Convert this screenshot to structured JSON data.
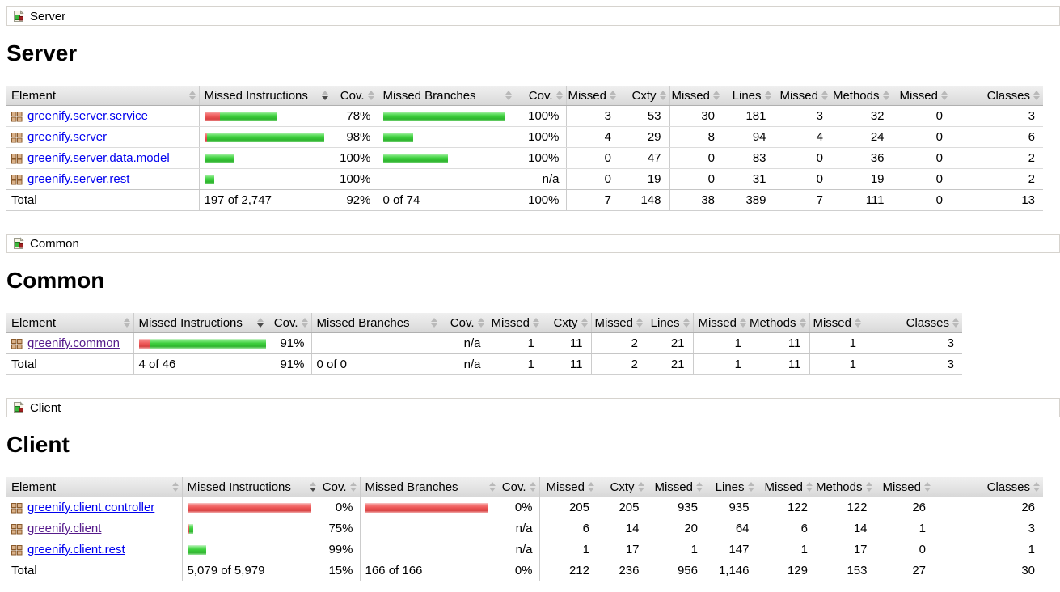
{
  "colors": {
    "link": "#0000EE",
    "link_visited": "#551A8B",
    "bar_green": "#3ecf3e",
    "bar_red": "#ef5a5a"
  },
  "sections": [
    {
      "breadcrumb": "Server",
      "title": "Server",
      "columns": [
        "Element",
        "Missed Instructions",
        "Cov.",
        "Missed Branches",
        "Cov.",
        "Missed",
        "Cxty",
        "Missed",
        "Lines",
        "Missed",
        "Methods",
        "Missed",
        "Classes"
      ],
      "rows": [
        {
          "name": "greenify.server.service",
          "instr_bar": {
            "red": 19,
            "green": 70
          },
          "instr_cov": "78%",
          "branch_bar": {
            "red": 0,
            "green": 151
          },
          "branch_cov": "100%",
          "missed_cxty": "3",
          "cxty": "53",
          "missed_lines": "30",
          "lines": "181",
          "missed_methods": "3",
          "methods": "32",
          "missed_classes": "0",
          "classes": "3"
        },
        {
          "name": "greenify.server",
          "instr_bar": {
            "red": 3,
            "green": 145
          },
          "instr_cov": "98%",
          "branch_bar": {
            "red": 0,
            "green": 37
          },
          "branch_cov": "100%",
          "missed_cxty": "4",
          "cxty": "29",
          "missed_lines": "8",
          "lines": "94",
          "missed_methods": "4",
          "methods": "24",
          "missed_classes": "0",
          "classes": "6"
        },
        {
          "name": "greenify.server.data.model",
          "instr_bar": {
            "red": 0,
            "green": 37
          },
          "instr_cov": "100%",
          "branch_bar": {
            "red": 0,
            "green": 80
          },
          "branch_cov": "100%",
          "missed_cxty": "0",
          "cxty": "47",
          "missed_lines": "0",
          "lines": "83",
          "missed_methods": "0",
          "methods": "36",
          "missed_classes": "0",
          "classes": "2"
        },
        {
          "name": "greenify.server.rest",
          "instr_bar": {
            "red": 0,
            "green": 12
          },
          "instr_cov": "100%",
          "branch_bar": {
            "red": 0,
            "green": 0
          },
          "branch_cov": "n/a",
          "missed_cxty": "0",
          "cxty": "19",
          "missed_lines": "0",
          "lines": "31",
          "missed_methods": "0",
          "methods": "19",
          "missed_classes": "0",
          "classes": "2"
        }
      ],
      "total": {
        "label": "Total",
        "instr": "197 of 2,747",
        "instr_cov": "92%",
        "branch": "0 of 74",
        "branch_cov": "100%",
        "missed_cxty": "7",
        "cxty": "148",
        "missed_lines": "38",
        "lines": "389",
        "missed_methods": "7",
        "methods": "111",
        "missed_classes": "0",
        "classes": "13"
      }
    },
    {
      "breadcrumb": "Common",
      "title": "Common",
      "columns": [
        "Element",
        "Missed Instructions",
        "Cov.",
        "Missed Branches",
        "Cov.",
        "Missed",
        "Cxty",
        "Missed",
        "Lines",
        "Missed",
        "Methods",
        "Missed",
        "Classes"
      ],
      "rows": [
        {
          "name": "greenify.common",
          "instr_bar": {
            "red": 14,
            "green": 143
          },
          "instr_cov": "91%",
          "branch_bar": {
            "red": 0,
            "green": 0
          },
          "branch_cov": "n/a",
          "missed_cxty": "1",
          "cxty": "11",
          "missed_lines": "2",
          "lines": "21",
          "missed_methods": "1",
          "methods": "11",
          "missed_classes": "1",
          "classes": "3"
        }
      ],
      "total": {
        "label": "Total",
        "instr": "4 of 46",
        "instr_cov": "91%",
        "branch": "0 of 0",
        "branch_cov": "n/a",
        "missed_cxty": "1",
        "cxty": "11",
        "missed_lines": "2",
        "lines": "21",
        "missed_methods": "1",
        "methods": "11",
        "missed_classes": "1",
        "classes": "3"
      }
    },
    {
      "breadcrumb": "Client",
      "title": "Client",
      "columns": [
        "Element",
        "Missed Instructions",
        "Cov.",
        "Missed Branches",
        "Cov.",
        "Missed",
        "Cxty",
        "Missed",
        "Lines",
        "Missed",
        "Methods",
        "Missed",
        "Classes"
      ],
      "rows": [
        {
          "name": "greenify.client.controller",
          "instr_bar": {
            "red": 153,
            "green": 0
          },
          "instr_cov": "0%",
          "branch_bar": {
            "red": 152,
            "green": 0
          },
          "branch_cov": "0%",
          "missed_cxty": "205",
          "cxty": "205",
          "missed_lines": "935",
          "lines": "935",
          "missed_methods": "122",
          "methods": "122",
          "missed_classes": "26",
          "classes": "26"
        },
        {
          "name": "greenify.client",
          "instr_bar": {
            "red": 2,
            "green": 5
          },
          "instr_cov": "75%",
          "branch_bar": {
            "red": 0,
            "green": 0
          },
          "branch_cov": "n/a",
          "missed_cxty": "6",
          "cxty": "14",
          "missed_lines": "20",
          "lines": "64",
          "missed_methods": "6",
          "methods": "14",
          "missed_classes": "1",
          "classes": "3"
        },
        {
          "name": "greenify.client.rest",
          "instr_bar": {
            "red": 0,
            "green": 23
          },
          "instr_cov": "99%",
          "branch_bar": {
            "red": 0,
            "green": 0
          },
          "branch_cov": "n/a",
          "missed_cxty": "1",
          "cxty": "17",
          "missed_lines": "1",
          "lines": "147",
          "missed_methods": "1",
          "methods": "17",
          "missed_classes": "0",
          "classes": "1"
        }
      ],
      "total": {
        "label": "Total",
        "instr": "5,079 of 5,979",
        "instr_cov": "15%",
        "branch": "166 of 166",
        "branch_cov": "0%",
        "missed_cxty": "212",
        "cxty": "236",
        "missed_lines": "956",
        "lines": "1,146",
        "missed_methods": "129",
        "methods": "153",
        "missed_classes": "27",
        "classes": "30"
      }
    }
  ]
}
